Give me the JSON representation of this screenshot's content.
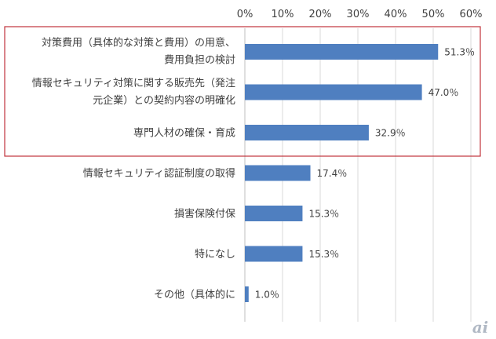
{
  "chart_data": {
    "type": "bar",
    "orientation": "horizontal",
    "categories": [
      [
        "対策費用（具体的な対策と費用）の用意、",
        "費用負担の検討"
      ],
      [
        "情報セキュリティ対策に関する販売先（発注",
        "元企業）との契約内容の明確化"
      ],
      [
        "専門人材の確保・育成"
      ],
      [
        "情報セキュリティ認証制度の取得"
      ],
      [
        "損害保険付保"
      ],
      [
        "特になし"
      ],
      [
        "その他（具体的に"
      ]
    ],
    "values": [
      51.3,
      47.0,
      32.9,
      17.4,
      15.3,
      15.3,
      1.0
    ],
    "value_labels": [
      "51.3％",
      "47.0％",
      "32.9％",
      "17.4％",
      "15.3％",
      "15.3％",
      "1.0％"
    ],
    "xticks": [
      "0%",
      "10%",
      "20%",
      "30%",
      "40%",
      "50%",
      "60%"
    ],
    "xlim": [
      0,
      60
    ],
    "grid": true,
    "highlighted_categories": [
      0,
      1,
      2
    ],
    "bar_color": "#4f7fc0",
    "highlight_color": "#c0343c"
  },
  "watermark": {
    "text": "ai",
    "color": "#b0b8c4"
  }
}
